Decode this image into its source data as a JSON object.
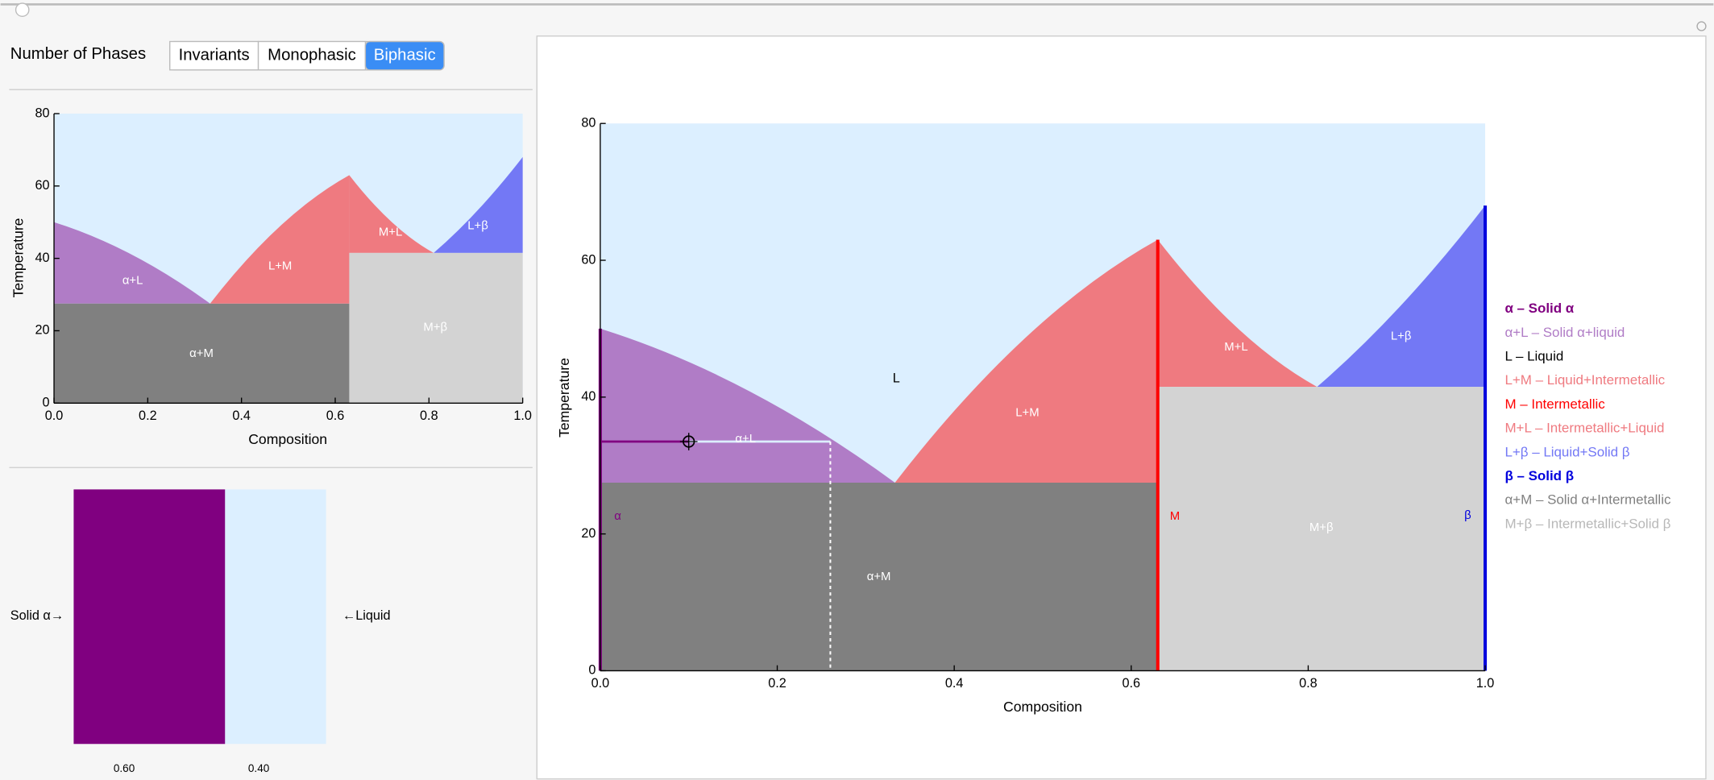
{
  "controls": {
    "label": "Number of Phases",
    "options": [
      "Invariants",
      "Monophasic",
      "Biphasic"
    ],
    "selected": 2
  },
  "diagram": {
    "alpha_melt": 50,
    "beta_melt": 68,
    "m_x": 0.63,
    "m_melt": 63,
    "e1_x": 0.333,
    "e1_t": 27.5,
    "e2_x": 0.81,
    "e2_t": 41.5
  },
  "small_chart": {
    "xlabel": "Composition",
    "ylabel": "Temperature",
    "xlim": [
      0,
      1
    ],
    "ylim": [
      0,
      80
    ],
    "xticks": [
      {
        "value": 0,
        "label": "0.0"
      },
      0.2,
      0.4,
      0.6,
      0.8,
      {
        "value": 1,
        "label": "1.0"
      }
    ],
    "yticks": [
      0,
      20,
      40,
      60,
      80
    ],
    "region_labels": [
      "α+L",
      "L+M",
      "M+L",
      "L+β",
      "α+M",
      "M+β"
    ]
  },
  "main_chart": {
    "xlabel": "Composition",
    "ylabel": "Temperature",
    "xlim": [
      0,
      1
    ],
    "ylim": [
      0,
      80
    ],
    "xticks": [
      {
        "value": 0,
        "label": "0.0"
      },
      0.2,
      0.4,
      0.6,
      0.8,
      {
        "value": 1,
        "label": "1.0"
      }
    ],
    "yticks": [
      0,
      20,
      40,
      60,
      80
    ],
    "region_labels": [
      "L",
      "α+L",
      "L+M",
      "M+L",
      "L+β",
      "α+M",
      "M+β",
      "α",
      "M",
      "β"
    ],
    "cursor": {
      "x": 0.1,
      "t": 33.5,
      "liquid_x": 0.26
    },
    "legend": [
      {
        "text": "α – Solid α",
        "color": "#800080"
      },
      {
        "text": "α+L – Solid α+liquid",
        "color": "#b07cc6"
      },
      {
        "text": "L – Liquid",
        "color": "#000000"
      },
      {
        "text": "L+M – Liquid+Intermetallic",
        "color": "#ef7a80"
      },
      {
        "text": "M – Intermetallic",
        "color": "#ff0000"
      },
      {
        "text": "M+L – Intermetallic+Liquid",
        "color": "#ef7a80"
      },
      {
        "text": "L+β – Liquid+Solid β",
        "color": "#7378f5"
      },
      {
        "text": "β – Solid β",
        "color": "#0000dd"
      },
      {
        "text": "α+M – Solid α+Intermetallic",
        "color": "#808080"
      },
      {
        "text": "M+β – Intermetallic+Solid β",
        "color": "#b8b8b8"
      }
    ]
  },
  "fraction_bar": {
    "left_label": "Solid α→",
    "right_label": "←Liquid",
    "values": [
      0.6,
      0.4
    ],
    "value_labels": [
      "0.60",
      "0.40"
    ],
    "colors": [
      "#800080",
      "#dcefff"
    ]
  }
}
